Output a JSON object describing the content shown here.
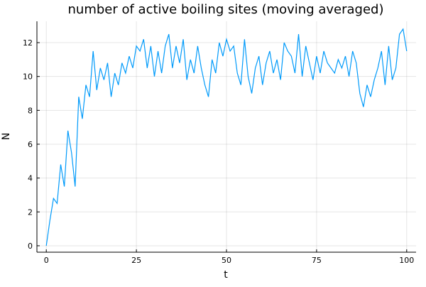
{
  "chart_data": {
    "type": "line",
    "title": "number of active boiling sites (moving averaged)",
    "xlabel": "t",
    "ylabel": "N",
    "color": "#009afa",
    "grid": true,
    "x": [
      0,
      1,
      2,
      3,
      4,
      5,
      6,
      7,
      8,
      9,
      10,
      11,
      12,
      13,
      14,
      15,
      16,
      17,
      18,
      19,
      20,
      21,
      22,
      23,
      24,
      25,
      26,
      27,
      28,
      29,
      30,
      31,
      32,
      33,
      34,
      35,
      36,
      37,
      38,
      39,
      40,
      41,
      42,
      43,
      44,
      45,
      46,
      47,
      48,
      49,
      50,
      51,
      52,
      53,
      54,
      55,
      56,
      57,
      58,
      59,
      60,
      61,
      62,
      63,
      64,
      65,
      66,
      67,
      68,
      69,
      70,
      71,
      72,
      73,
      74,
      75,
      76,
      77,
      78,
      79,
      80,
      81,
      82,
      83,
      84,
      85,
      86,
      87,
      88,
      89,
      90,
      91,
      92,
      93,
      94,
      95,
      96,
      97,
      98,
      99,
      100
    ],
    "values": [
      0,
      1.5,
      2.8,
      2.5,
      4.8,
      3.5,
      6.8,
      5.5,
      3.5,
      8.8,
      7.5,
      9.5,
      8.8,
      11.5,
      9.2,
      10.5,
      9.8,
      10.8,
      8.8,
      10.2,
      9.5,
      10.8,
      10.2,
      11.2,
      10.5,
      11.8,
      11.5,
      12.2,
      10.5,
      11.8,
      10.0,
      11.5,
      10.2,
      11.8,
      12.5,
      10.5,
      11.8,
      10.8,
      12.2,
      9.8,
      11.0,
      10.2,
      11.8,
      10.5,
      9.5,
      8.8,
      11.0,
      10.2,
      12.0,
      11.2,
      12.2,
      11.5,
      11.8,
      10.2,
      9.5,
      12.2,
      10.0,
      9.0,
      10.5,
      11.2,
      9.5,
      10.8,
      11.5,
      10.2,
      11.0,
      9.8,
      12.0,
      11.5,
      11.2,
      10.2,
      12.5,
      10.0,
      11.8,
      10.8,
      9.8,
      11.2,
      10.2,
      11.5,
      10.8,
      10.5,
      10.2,
      11.0,
      10.5,
      11.2,
      10.0,
      11.5,
      10.8,
      9.0,
      8.2,
      9.5,
      8.8,
      9.8,
      10.5,
      11.5,
      9.5,
      11.8,
      9.8,
      10.5,
      12.5,
      12.8,
      11.5
    ],
    "xlim": [
      -2.6,
      102.6
    ],
    "xticks": [
      0,
      25,
      50,
      75,
      100
    ],
    "ylim": [
      -0.38,
      13.26
    ],
    "yticks": [
      0,
      2,
      4,
      6,
      8,
      10,
      12
    ]
  }
}
